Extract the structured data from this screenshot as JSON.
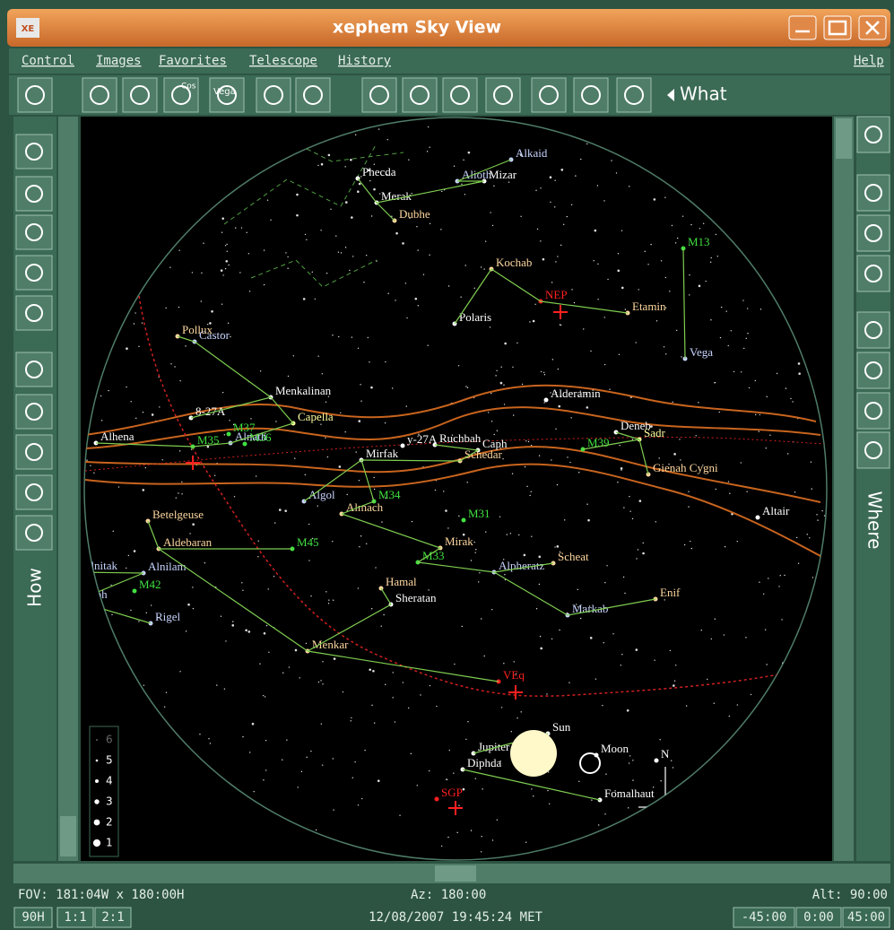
{
  "window": {
    "icon": "XE",
    "title": "xephem Sky View"
  },
  "menu": {
    "items": [
      "Control",
      "Images",
      "Favorites",
      "Telescope",
      "History"
    ],
    "help": "Help"
  },
  "toolbar": {
    "icon_texts": [
      "Cos",
      "Vega"
    ],
    "what": "What"
  },
  "side": {
    "how": "How",
    "where": "Where"
  },
  "sky": {
    "labels": [
      {
        "text": "Alkaid",
        "color": "#c8d4ff"
      },
      {
        "text": "Phecda",
        "color": "#ffffff"
      },
      {
        "text": "Alioth",
        "color": "#c8d4ff"
      },
      {
        "text": "Mizar",
        "color": "#ffffff"
      },
      {
        "text": "Merak",
        "color": "#ffffff"
      },
      {
        "text": "Dubhe",
        "color": "#ffd8a0"
      },
      {
        "text": "Kochab",
        "color": "#ffd8a0"
      },
      {
        "text": "NEP",
        "color": "#ff2020"
      },
      {
        "text": "Polaris",
        "color": "#ffffff"
      },
      {
        "text": "Etamin",
        "color": "#ffd8a0"
      },
      {
        "text": "M13",
        "color": "#40e040"
      },
      {
        "text": "Vega",
        "color": "#c8d4ff"
      },
      {
        "text": "Pollux",
        "color": "#ffd8a0"
      },
      {
        "text": "Castor",
        "color": "#c8d4ff"
      },
      {
        "text": "Menkalinan",
        "color": "#ffffff"
      },
      {
        "text": "Alderamin",
        "color": "#ffffff"
      },
      {
        "text": "8-27A",
        "color": "#ffffff"
      },
      {
        "text": "Capella",
        "color": "#ffffa0"
      },
      {
        "text": "M37",
        "color": "#40e040"
      },
      {
        "text": "M36",
        "color": "#40e040"
      },
      {
        "text": "M35",
        "color": "#40e040"
      },
      {
        "text": "Alhena",
        "color": "#ffffff"
      },
      {
        "text": "y-27A",
        "color": "#ffffff"
      },
      {
        "text": "Ruchbah",
        "color": "#ffffff"
      },
      {
        "text": "Caph",
        "color": "#ffffff"
      },
      {
        "text": "Schedar",
        "color": "#ffd8a0"
      },
      {
        "text": "M39",
        "color": "#40e040"
      },
      {
        "text": "Deneb",
        "color": "#ffffff"
      },
      {
        "text": "Sadr",
        "color": "#ffffa0"
      },
      {
        "text": "Alnath",
        "color": "#c8d4ff"
      },
      {
        "text": "Mirfak",
        "color": "#ffffff"
      },
      {
        "text": "Gienah Cygni",
        "color": "#ffd8a0"
      },
      {
        "text": "Algol",
        "color": "#c8d4ff"
      },
      {
        "text": "M34",
        "color": "#40e040"
      },
      {
        "text": "Almach",
        "color": "#ffd8a0"
      },
      {
        "text": "M31",
        "color": "#40e040"
      },
      {
        "text": "Altair",
        "color": "#ffffff"
      },
      {
        "text": "Betelgeuse",
        "color": "#ffd8a0"
      },
      {
        "text": "Aldebaran",
        "color": "#ffd8a0"
      },
      {
        "text": "M45",
        "color": "#40e040"
      },
      {
        "text": "Mirak",
        "color": "#ffd8a0"
      },
      {
        "text": "Scheat",
        "color": "#ffd8a0"
      },
      {
        "text": "Alnitak",
        "color": "#c8d4ff"
      },
      {
        "text": "Alnilam",
        "color": "#c8d4ff"
      },
      {
        "text": "M33",
        "color": "#40e040"
      },
      {
        "text": "Alpheratz",
        "color": "#c8d4ff"
      },
      {
        "text": "M42",
        "color": "#40e040"
      },
      {
        "text": "Saiph",
        "color": "#c8d4ff"
      },
      {
        "text": "Hamal",
        "color": "#ffd8a0"
      },
      {
        "text": "Sheratan",
        "color": "#ffffff"
      },
      {
        "text": "Enif",
        "color": "#ffd8a0"
      },
      {
        "text": "Markab",
        "color": "#c8d4ff"
      },
      {
        "text": "Rigel",
        "color": "#c8d4ff"
      },
      {
        "text": "Menkar",
        "color": "#ffd8a0"
      },
      {
        "text": "VEq",
        "color": "#ff2020"
      },
      {
        "text": "Sun",
        "color": "#ffffff"
      },
      {
        "text": "Moon",
        "color": "#ffffff"
      },
      {
        "text": "Jupiter",
        "color": "#ffffff"
      },
      {
        "text": "Diphda",
        "color": "#ffffff"
      },
      {
        "text": "N",
        "color": "#ffffff"
      },
      {
        "text": "SGP",
        "color": "#ff2020"
      },
      {
        "text": "Fomalhaut",
        "color": "#ffffff"
      }
    ],
    "magnitudes": [
      "6",
      "5",
      "4",
      "3",
      "2",
      "1"
    ]
  },
  "status": {
    "fov": "FOV: 181:04W x 180:00H",
    "az": "Az: 180:00",
    "alt": "Alt: 90:00",
    "hemi": "90H",
    "zoom": [
      "1:1",
      "2:1"
    ],
    "datetime": "12/08/2007 19:45:24 MET",
    "steps": [
      "-45:00",
      "0:00",
      "45:00"
    ]
  }
}
